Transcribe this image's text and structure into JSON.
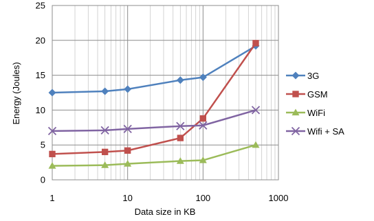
{
  "chart_data": {
    "type": "line",
    "title": "",
    "xlabel": "Data size in KB",
    "ylabel": "Energy (Joules)",
    "x_scale": "log",
    "xlim": [
      1,
      1000
    ],
    "ylim": [
      0,
      25
    ],
    "x_ticks": [
      1,
      10,
      100,
      1000
    ],
    "x_tick_labels": [
      "1",
      "10",
      "100",
      "1000"
    ],
    "y_ticks": [
      0,
      5,
      10,
      15,
      20,
      25
    ],
    "y_tick_labels": [
      "0",
      "5",
      "10",
      "15",
      "20",
      "25"
    ],
    "grid": true,
    "legend_position": "right",
    "x": [
      1,
      5,
      10,
      50,
      100,
      500
    ],
    "series": [
      {
        "name": "3G",
        "color": "#4F81BD",
        "marker": "diamond",
        "values": [
          12.5,
          12.7,
          13.0,
          14.3,
          14.7,
          19.2
        ]
      },
      {
        "name": "GSM",
        "color": "#C0504D",
        "marker": "square",
        "values": [
          3.7,
          4.0,
          4.2,
          6.0,
          8.8,
          19.6
        ]
      },
      {
        "name": "WiFi",
        "color": "#9BBB59",
        "marker": "triangle",
        "values": [
          2.0,
          2.1,
          2.3,
          2.7,
          2.8,
          5.0
        ]
      },
      {
        "name": "Wifi + SA",
        "color": "#8064A2",
        "marker": "x",
        "values": [
          7.0,
          7.1,
          7.3,
          7.7,
          7.8,
          10.0
        ]
      }
    ]
  }
}
